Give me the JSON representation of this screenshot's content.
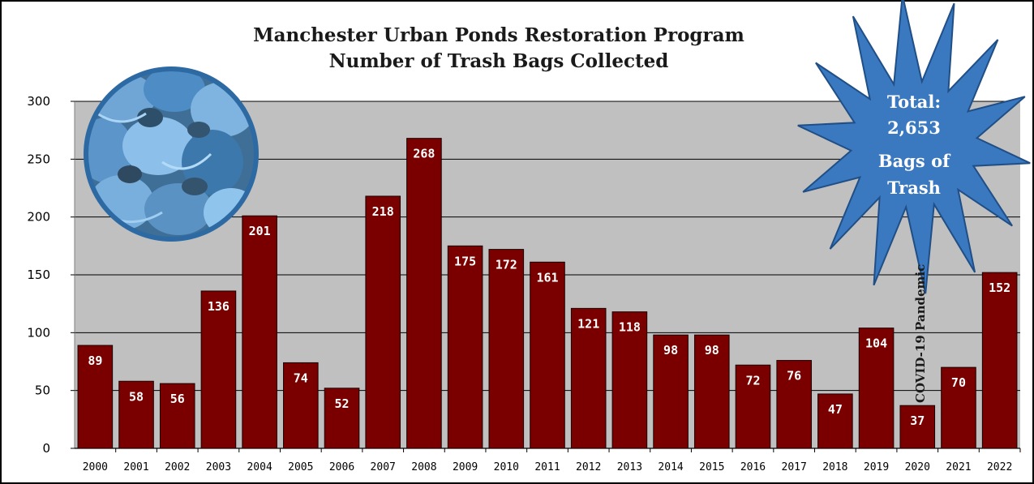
{
  "chart_data": {
    "type": "bar",
    "title": "Manchester Urban Ponds Restoration Program",
    "subtitle": "Number of Trash Bags Collected",
    "categories": [
      "2000",
      "2001",
      "2002",
      "2003",
      "2004",
      "2005",
      "2006",
      "2007",
      "2008",
      "2009",
      "2010",
      "2011",
      "2012",
      "2013",
      "2014",
      "2015",
      "2016",
      "2017",
      "2018",
      "2019",
      "2020",
      "2021",
      "2022"
    ],
    "values": [
      89,
      58,
      56,
      136,
      201,
      74,
      52,
      218,
      268,
      175,
      172,
      161,
      121,
      118,
      98,
      98,
      72,
      76,
      47,
      104,
      37,
      70,
      152
    ],
    "ylim": [
      0,
      300
    ],
    "yticks": [
      0,
      50,
      100,
      150,
      200,
      250,
      300
    ],
    "xlabel": "",
    "ylabel": "",
    "grid": true,
    "bar_color": "#7a0000",
    "plot_background": "#c0c0c0",
    "annotations": {
      "total_star": [
        "Total:",
        "2,653",
        "Bags of",
        "Trash"
      ],
      "covid_note": "COVID-19 Pandemic"
    },
    "star_color": "#3a78bf",
    "image": "trash-bags-photo"
  }
}
